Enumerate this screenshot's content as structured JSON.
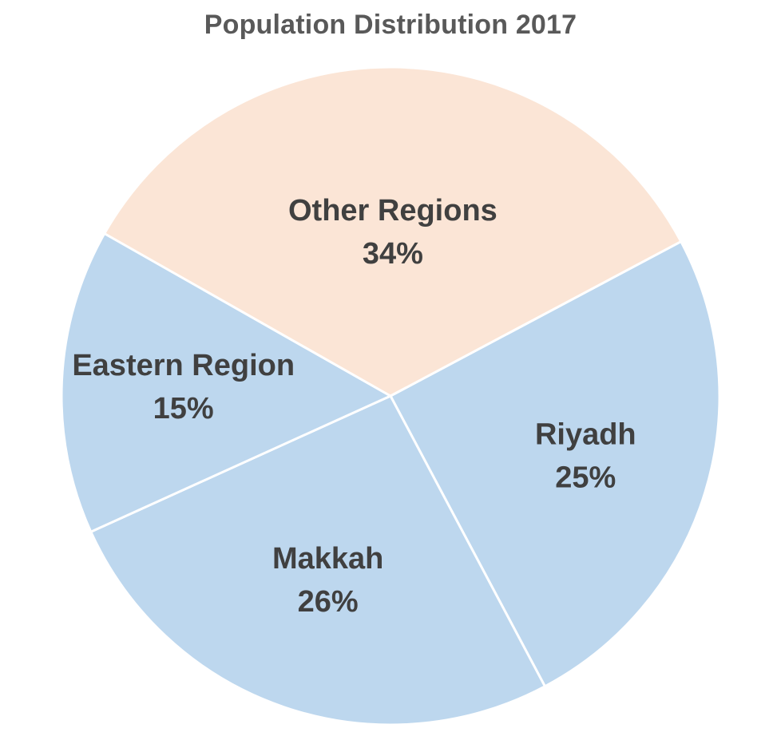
{
  "chart_data": {
    "type": "pie",
    "title": "Population Distribution 2017",
    "slices": [
      {
        "label": "Riyadh",
        "value": 25,
        "display": "25%",
        "color": "#bdd7ee"
      },
      {
        "label": "Makkah",
        "value": 26,
        "display": "26%",
        "color": "#bdd7ee"
      },
      {
        "label": "Eastern Region",
        "value": 15,
        "display": "15%",
        "color": "#bdd7ee"
      },
      {
        "label": "Other Regions",
        "value": 34,
        "display": "34%",
        "color": "#fbe5d6"
      }
    ],
    "start": "Riyadh slice begins near 1 o'clock, slices run clockwise",
    "slice_border_color": "#ffffff",
    "label_color": "#404040",
    "title_color": "#595959",
    "legend": "none (labels on slices)"
  }
}
